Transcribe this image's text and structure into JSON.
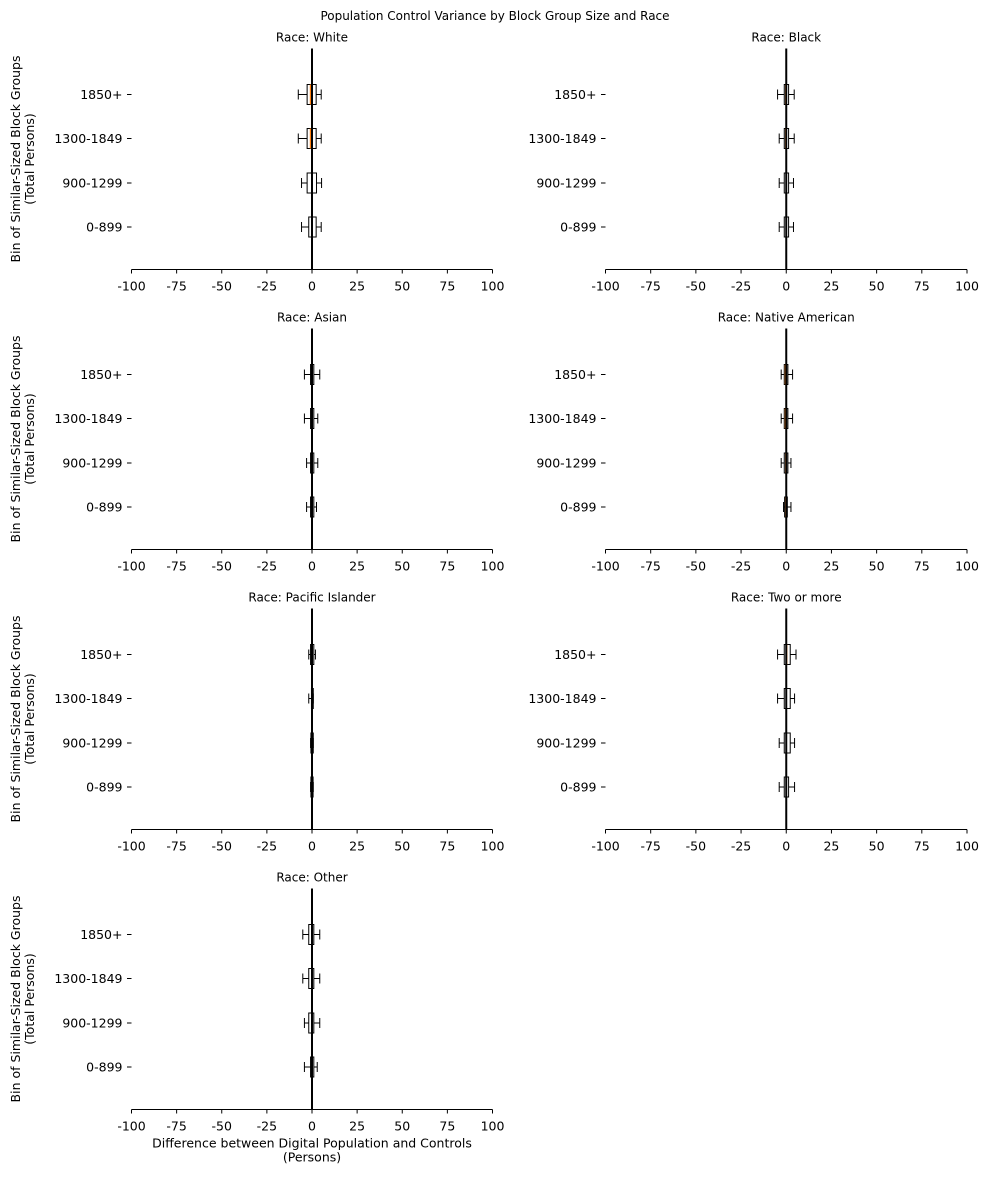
{
  "figure_title": "Population Control Variance by Block Group Size and Race",
  "colors": {
    "box_edge": "#000000",
    "median": "#ff7f0e",
    "zero_line": "#000000",
    "box_fill": "#ffffff"
  },
  "chart_data": {
    "type": "boxplot-horizontal",
    "title": "Population Control Variance by Block Group Size and Race",
    "xlabel": "Difference between Digital Population and Controls\n(Persons)",
    "xlabel_lines": [
      "Difference between Digital Population and Controls",
      "(Persons)"
    ],
    "ylabel_lines": [
      "Bin of Similar-Sized Block Groups",
      "(Total Persons)"
    ],
    "xlim": [
      -100,
      100
    ],
    "xticks": [
      -100,
      -75,
      -50,
      -25,
      0,
      25,
      50,
      75,
      100
    ],
    "xtick_labels": [
      "-100",
      "-75",
      "-50",
      "-25",
      "0",
      "25",
      "50",
      "75",
      "100"
    ],
    "categories": [
      "1850+",
      "1300-1849",
      "900-1299",
      "0-899"
    ],
    "reference_line": 0,
    "panels": [
      {
        "title": "Race: White",
        "boxes": [
          {
            "category": "1850+",
            "whislo": -7.6,
            "q1": -2.7,
            "median": -0.8,
            "q3": 2.3,
            "whishi": 5.1
          },
          {
            "category": "1300-1849",
            "whislo": -7.6,
            "q1": -2.7,
            "median": -0.8,
            "q3": 2.3,
            "whishi": 5.1
          },
          {
            "category": "900-1299",
            "whislo": -5.8,
            "q1": -2.7,
            "median": 0.1,
            "q3": 2.5,
            "whishi": 5.3
          },
          {
            "category": "0-899",
            "whislo": -5.8,
            "q1": -1.8,
            "median": 0.1,
            "q3": 2.3,
            "whishi": 5.1
          }
        ]
      },
      {
        "title": "Race: Black",
        "boxes": [
          {
            "category": "1850+",
            "whislo": -4.8,
            "q1": -1.1,
            "median": -0.2,
            "q3": 1.3,
            "whishi": 4.4
          },
          {
            "category": "1300-1849",
            "whislo": -3.9,
            "q1": -1.1,
            "median": -0.2,
            "q3": 1.3,
            "whishi": 4.4
          },
          {
            "category": "900-1299",
            "whislo": -3.9,
            "q1": -1.1,
            "median": 0.0,
            "q3": 1.3,
            "whishi": 4.0
          },
          {
            "category": "0-899",
            "whislo": -3.9,
            "q1": -1.1,
            "median": 0.0,
            "q3": 1.3,
            "whishi": 4.0
          }
        ]
      },
      {
        "title": "Race: Asian",
        "boxes": [
          {
            "category": "1850+",
            "whislo": -4.2,
            "q1": -0.8,
            "median": 0.1,
            "q3": 1.0,
            "whishi": 4.3
          },
          {
            "category": "1300-1849",
            "whislo": -4.2,
            "q1": -0.8,
            "median": 0.1,
            "q3": 1.0,
            "whishi": 3.2
          },
          {
            "category": "900-1299",
            "whislo": -3.0,
            "q1": -0.8,
            "median": 0.1,
            "q3": 1.0,
            "whishi": 3.2
          },
          {
            "category": "0-899",
            "whislo": -3.0,
            "q1": -0.8,
            "median": 0.0,
            "q3": 1.0,
            "whishi": 2.5
          }
        ]
      },
      {
        "title": "Race: Native American",
        "boxes": [
          {
            "category": "1850+",
            "whislo": -2.8,
            "q1": -1.1,
            "median": -0.4,
            "q3": 0.9,
            "whishi": 3.5
          },
          {
            "category": "1300-1849",
            "whislo": -2.8,
            "q1": -1.1,
            "median": -0.4,
            "q3": 0.9,
            "whishi": 3.5
          },
          {
            "category": "900-1299",
            "whislo": -2.8,
            "q1": -1.1,
            "median": -0.2,
            "q3": 0.9,
            "whishi": 2.6
          },
          {
            "category": "0-899",
            "whislo": -1.5,
            "q1": -0.9,
            "median": -0.2,
            "q3": 0.6,
            "whishi": 2.6
          }
        ]
      },
      {
        "title": "Race: Pacific Islander",
        "boxes": [
          {
            "category": "1850+",
            "whislo": -1.8,
            "q1": -0.8,
            "median": -0.1,
            "q3": 1.0,
            "whishi": 1.9
          },
          {
            "category": "1300-1849",
            "whislo": -1.8,
            "q1": -0.3,
            "median": 0.1,
            "q3": 0.7,
            "whishi": 0.7
          },
          {
            "category": "900-1299",
            "whislo": -0.8,
            "q1": -0.6,
            "median": 0.0,
            "q3": 0.7,
            "whishi": 0.7
          },
          {
            "category": "0-899",
            "whislo": -0.8,
            "q1": -0.6,
            "median": 0.0,
            "q3": 0.6,
            "whishi": 0.7
          }
        ]
      },
      {
        "title": "Race: Two or more",
        "boxes": [
          {
            "category": "1850+",
            "whislo": -4.8,
            "q1": -1.1,
            "median": 0.2,
            "q3": 2.2,
            "whishi": 5.4
          },
          {
            "category": "1300-1849",
            "whislo": -4.8,
            "q1": -1.1,
            "median": 0.0,
            "q3": 2.2,
            "whishi": 4.6
          },
          {
            "category": "900-1299",
            "whislo": -3.9,
            "q1": -1.1,
            "median": 0.0,
            "q3": 2.2,
            "whishi": 4.6
          },
          {
            "category": "0-899",
            "whislo": -3.9,
            "q1": -1.1,
            "median": 0.0,
            "q3": 1.3,
            "whishi": 4.6
          }
        ]
      },
      {
        "title": "Race: Other",
        "boxes": [
          {
            "category": "1850+",
            "whislo": -5.1,
            "q1": -1.8,
            "median": 0.1,
            "q3": 1.0,
            "whishi": 4.3
          },
          {
            "category": "1300-1849",
            "whislo": -5.1,
            "q1": -1.8,
            "median": 0.1,
            "q3": 1.0,
            "whishi": 4.3
          },
          {
            "category": "900-1299",
            "whislo": -4.2,
            "q1": -1.8,
            "median": 0.0,
            "q3": 1.0,
            "whishi": 4.3
          },
          {
            "category": "0-899",
            "whislo": -4.2,
            "q1": -0.8,
            "median": 0.1,
            "q3": 1.0,
            "whishi": 2.9
          }
        ]
      }
    ]
  }
}
